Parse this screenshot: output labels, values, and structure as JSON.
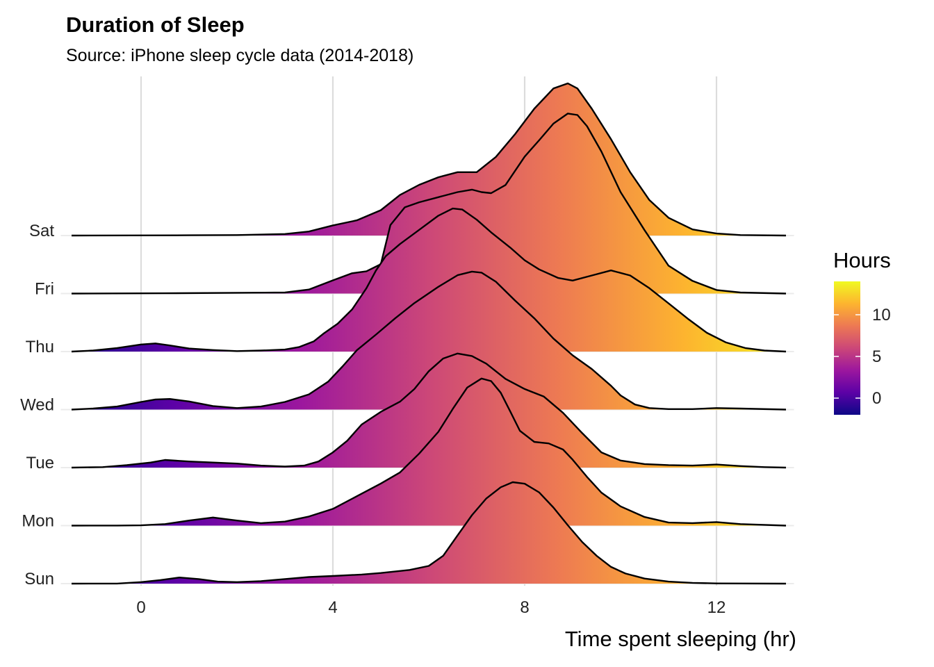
{
  "chart_data": {
    "type": "area",
    "title": "Duration of Sleep",
    "subtitle": "Source: iPhone sleep cycle data (2014-2018)",
    "xlabel": "Time spent sleeping (hr)",
    "ylabel": "",
    "xlim": [
      -1.5,
      13.5
    ],
    "xticks": [
      0,
      4,
      8,
      12
    ],
    "grid": true,
    "categories": [
      "Sun",
      "Mon",
      "Tue",
      "Wed",
      "Thu",
      "Fri",
      "Sat"
    ],
    "series": [
      {
        "name": "Sun",
        "points": [
          [
            -1.45,
            0
          ],
          [
            -0.5,
            0.002
          ],
          [
            0,
            0.03
          ],
          [
            0.4,
            0.07
          ],
          [
            0.8,
            0.12
          ],
          [
            1.2,
            0.09
          ],
          [
            1.6,
            0.04
          ],
          [
            2,
            0.03
          ],
          [
            2.5,
            0.05
          ],
          [
            3,
            0.09
          ],
          [
            3.5,
            0.13
          ],
          [
            4,
            0.15
          ],
          [
            4.6,
            0.18
          ],
          [
            5,
            0.21
          ],
          [
            5.6,
            0.27
          ],
          [
            6.0,
            0.35
          ],
          [
            6.3,
            0.55
          ],
          [
            6.6,
            0.95
          ],
          [
            6.9,
            1.35
          ],
          [
            7.2,
            1.68
          ],
          [
            7.5,
            1.9
          ],
          [
            7.75,
            2.0
          ],
          [
            8.0,
            1.97
          ],
          [
            8.3,
            1.8
          ],
          [
            8.6,
            1.5
          ],
          [
            8.9,
            1.15
          ],
          [
            9.2,
            0.82
          ],
          [
            9.5,
            0.55
          ],
          [
            9.8,
            0.33
          ],
          [
            10.1,
            0.2
          ],
          [
            10.5,
            0.1
          ],
          [
            11,
            0.04
          ],
          [
            11.5,
            0.015
          ],
          [
            12,
            0.004
          ],
          [
            13.45,
            0
          ]
        ]
      },
      {
        "name": "Mon",
        "points": [
          [
            -1.45,
            0
          ],
          [
            -0.5,
            0.002
          ],
          [
            0,
            0.005
          ],
          [
            0.5,
            0.03
          ],
          [
            1.0,
            0.1
          ],
          [
            1.5,
            0.16
          ],
          [
            2.0,
            0.1
          ],
          [
            2.5,
            0.05
          ],
          [
            3,
            0.08
          ],
          [
            3.5,
            0.18
          ],
          [
            4,
            0.33
          ],
          [
            4.5,
            0.58
          ],
          [
            5,
            0.83
          ],
          [
            5.4,
            1.05
          ],
          [
            5.8,
            1.42
          ],
          [
            6.2,
            1.85
          ],
          [
            6.5,
            2.3
          ],
          [
            6.8,
            2.72
          ],
          [
            7.1,
            2.9
          ],
          [
            7.3,
            2.85
          ],
          [
            7.5,
            2.62
          ],
          [
            7.7,
            2.25
          ],
          [
            7.9,
            1.87
          ],
          [
            8.2,
            1.65
          ],
          [
            8.5,
            1.62
          ],
          [
            8.8,
            1.5
          ],
          [
            9.0,
            1.3
          ],
          [
            9.3,
            0.96
          ],
          [
            9.6,
            0.65
          ],
          [
            10,
            0.38
          ],
          [
            10.5,
            0.17
          ],
          [
            11,
            0.06
          ],
          [
            11.5,
            0.05
          ],
          [
            12,
            0.07
          ],
          [
            12.5,
            0.03
          ],
          [
            13.45,
            0
          ]
        ]
      },
      {
        "name": "Tue",
        "points": [
          [
            -1.45,
            0
          ],
          [
            -0.8,
            0.01
          ],
          [
            -0.3,
            0.05
          ],
          [
            0.2,
            0.1
          ],
          [
            0.5,
            0.15
          ],
          [
            1,
            0.12
          ],
          [
            1.5,
            0.1
          ],
          [
            2,
            0.08
          ],
          [
            2.5,
            0.04
          ],
          [
            3,
            0.02
          ],
          [
            3.4,
            0.04
          ],
          [
            3.7,
            0.12
          ],
          [
            4,
            0.3
          ],
          [
            4.3,
            0.53
          ],
          [
            4.6,
            0.85
          ],
          [
            5,
            1.1
          ],
          [
            5.4,
            1.3
          ],
          [
            5.7,
            1.55
          ],
          [
            6,
            1.9
          ],
          [
            6.3,
            2.15
          ],
          [
            6.6,
            2.25
          ],
          [
            6.9,
            2.2
          ],
          [
            7.2,
            2.05
          ],
          [
            7.6,
            1.75
          ],
          [
            8,
            1.55
          ],
          [
            8.4,
            1.4
          ],
          [
            8.8,
            1.08
          ],
          [
            9.2,
            0.68
          ],
          [
            9.6,
            0.3
          ],
          [
            10,
            0.14
          ],
          [
            10.5,
            0.07
          ],
          [
            11,
            0.05
          ],
          [
            11.5,
            0.04
          ],
          [
            12,
            0.06
          ],
          [
            12.5,
            0.03
          ],
          [
            13,
            0.01
          ],
          [
            13.45,
            0
          ]
        ]
      },
      {
        "name": "Wed",
        "points": [
          [
            -1.45,
            0
          ],
          [
            -1,
            0.02
          ],
          [
            -0.5,
            0.06
          ],
          [
            0,
            0.15
          ],
          [
            0.3,
            0.2
          ],
          [
            0.6,
            0.21
          ],
          [
            1,
            0.16
          ],
          [
            1.5,
            0.07
          ],
          [
            2,
            0.03
          ],
          [
            2.5,
            0.06
          ],
          [
            3,
            0.15
          ],
          [
            3.5,
            0.3
          ],
          [
            3.9,
            0.55
          ],
          [
            4.2,
            0.85
          ],
          [
            4.5,
            1.17
          ],
          [
            4.9,
            1.48
          ],
          [
            5.3,
            1.8
          ],
          [
            5.7,
            2.1
          ],
          [
            6.2,
            2.42
          ],
          [
            6.6,
            2.65
          ],
          [
            6.9,
            2.72
          ],
          [
            7.1,
            2.7
          ],
          [
            7.4,
            2.52
          ],
          [
            7.8,
            2.15
          ],
          [
            8.2,
            1.8
          ],
          [
            8.6,
            1.4
          ],
          [
            9.0,
            1.07
          ],
          [
            9.4,
            0.8
          ],
          [
            9.8,
            0.47
          ],
          [
            10,
            0.28
          ],
          [
            10.3,
            0.1
          ],
          [
            10.6,
            0.03
          ],
          [
            11,
            0.01
          ],
          [
            11.5,
            0.01
          ],
          [
            12,
            0.03
          ],
          [
            12.5,
            0.02
          ],
          [
            13.45,
            0
          ]
        ]
      },
      {
        "name": "Thu",
        "points": [
          [
            -1.45,
            0
          ],
          [
            -1,
            0.02
          ],
          [
            -0.5,
            0.07
          ],
          [
            0,
            0.14
          ],
          [
            0.3,
            0.16
          ],
          [
            0.6,
            0.12
          ],
          [
            1,
            0.06
          ],
          [
            1.5,
            0.03
          ],
          [
            2,
            0.01
          ],
          [
            2.5,
            0.02
          ],
          [
            3,
            0.04
          ],
          [
            3.3,
            0.09
          ],
          [
            3.6,
            0.2
          ],
          [
            3.8,
            0.35
          ],
          [
            4.1,
            0.55
          ],
          [
            4.4,
            0.83
          ],
          [
            4.7,
            1.25
          ],
          [
            4.9,
            1.6
          ],
          [
            5.1,
            1.88
          ],
          [
            5.4,
            2.12
          ],
          [
            5.8,
            2.4
          ],
          [
            6.2,
            2.68
          ],
          [
            6.5,
            2.82
          ],
          [
            6.7,
            2.8
          ],
          [
            7,
            2.6
          ],
          [
            7.3,
            2.35
          ],
          [
            7.7,
            2.05
          ],
          [
            8,
            1.8
          ],
          [
            8.3,
            1.62
          ],
          [
            8.7,
            1.45
          ],
          [
            9,
            1.4
          ],
          [
            9.4,
            1.5
          ],
          [
            9.8,
            1.6
          ],
          [
            10.2,
            1.5
          ],
          [
            10.6,
            1.25
          ],
          [
            11,
            0.95
          ],
          [
            11.4,
            0.65
          ],
          [
            11.8,
            0.37
          ],
          [
            12.2,
            0.18
          ],
          [
            12.6,
            0.07
          ],
          [
            13,
            0.02
          ],
          [
            13.45,
            0
          ]
        ]
      },
      {
        "name": "Fri",
        "points": [
          [
            -1.45,
            0
          ],
          [
            0.5,
            0.005
          ],
          [
            3,
            0.02
          ],
          [
            3.5,
            0.08
          ],
          [
            4,
            0.26
          ],
          [
            4.4,
            0.4
          ],
          [
            4.7,
            0.44
          ],
          [
            5,
            0.58
          ],
          [
            5.2,
            1.35
          ],
          [
            5.5,
            1.7
          ],
          [
            5.8,
            1.8
          ],
          [
            6.2,
            1.9
          ],
          [
            6.6,
            2.0
          ],
          [
            6.9,
            2.05
          ],
          [
            7.1,
            2.0
          ],
          [
            7.3,
            1.98
          ],
          [
            7.6,
            2.14
          ],
          [
            8,
            2.7
          ],
          [
            8.3,
            3.02
          ],
          [
            8.6,
            3.35
          ],
          [
            8.9,
            3.55
          ],
          [
            9.1,
            3.52
          ],
          [
            9.3,
            3.3
          ],
          [
            9.6,
            2.8
          ],
          [
            10,
            2.0
          ],
          [
            10.5,
            1.25
          ],
          [
            11,
            0.55
          ],
          [
            11.5,
            0.25
          ],
          [
            12,
            0.07
          ],
          [
            12.5,
            0.02
          ],
          [
            13.45,
            0
          ]
        ]
      },
      {
        "name": "Sat",
        "points": [
          [
            -1.45,
            0
          ],
          [
            1,
            0.005
          ],
          [
            2,
            0.01
          ],
          [
            3,
            0.03
          ],
          [
            3.5,
            0.08
          ],
          [
            4,
            0.2
          ],
          [
            4.5,
            0.3
          ],
          [
            5,
            0.5
          ],
          [
            5.4,
            0.8
          ],
          [
            5.8,
            1.0
          ],
          [
            6.2,
            1.15
          ],
          [
            6.6,
            1.25
          ],
          [
            7,
            1.25
          ],
          [
            7.4,
            1.55
          ],
          [
            7.8,
            2.0
          ],
          [
            8.2,
            2.5
          ],
          [
            8.6,
            2.9
          ],
          [
            8.9,
            3.0
          ],
          [
            9.1,
            2.9
          ],
          [
            9.4,
            2.5
          ],
          [
            9.8,
            1.9
          ],
          [
            10.2,
            1.25
          ],
          [
            10.6,
            0.7
          ],
          [
            11,
            0.35
          ],
          [
            11.5,
            0.12
          ],
          [
            12,
            0.04
          ],
          [
            12.5,
            0.01
          ],
          [
            13.45,
            0
          ]
        ]
      }
    ],
    "legend": {
      "title": "Hours",
      "ticks": [
        0,
        5,
        10
      ],
      "range": [
        -2,
        14
      ],
      "placement": "right",
      "colors": [
        "#0d0887",
        "#5c01a6",
        "#9c179e",
        "#cc4778",
        "#ed7953",
        "#fdb42f",
        "#f0f921"
      ]
    }
  }
}
